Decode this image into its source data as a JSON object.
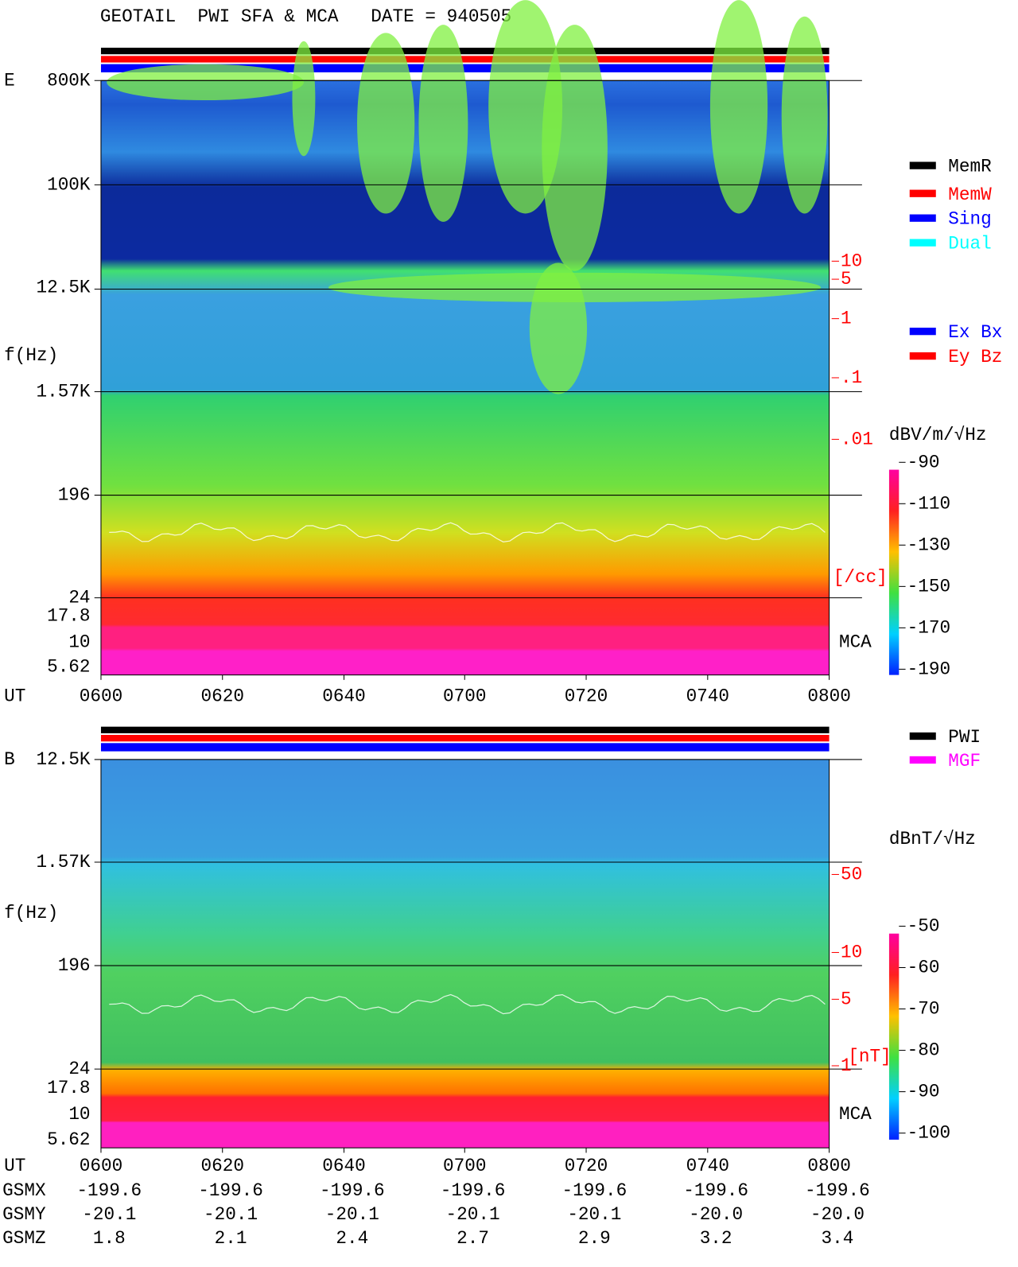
{
  "title": "GEOTAIL  PWI SFA & MCA   DATE = 940505",
  "panels": [
    {
      "label": "E",
      "ylabel": "f(Hz)",
      "yticks": [
        "800K",
        "100K",
        "12.5K",
        "1.57K",
        "196",
        "24",
        "17.8",
        "10",
        "5.62"
      ],
      "xaxis_label": "UT",
      "xticks": [
        "0600",
        "0620",
        "0640",
        "0700",
        "0720",
        "0740",
        "0800"
      ],
      "scale_ticks": [
        "10",
        "5",
        "1",
        ".1",
        ".01"
      ],
      "scale_unit": "[/cc]",
      "mca": "MCA",
      "legend": [
        {
          "name": "MemR",
          "color": "#000000"
        },
        {
          "name": "MemW",
          "color": "#ff0000"
        },
        {
          "name": "Sing",
          "color": "#0000ff"
        },
        {
          "name": "Dual",
          "color": "#00ffff"
        }
      ],
      "legend2": [
        {
          "name": "Ex Bx",
          "color": "#0000ff"
        },
        {
          "name": "Ey Bz",
          "color": "#ff0000"
        }
      ],
      "colorbar_unit": "dBV/m/√Hz",
      "colorbar_ticks": [
        -90,
        -110,
        -130,
        -150,
        -170,
        -190
      ]
    },
    {
      "label": "B",
      "ylabel": "f(Hz)",
      "yticks": [
        "12.5K",
        "1.57K",
        "196",
        "24",
        "17.8",
        "10",
        "5.62"
      ],
      "xaxis_label": "UT",
      "xticks": [
        "0600",
        "0620",
        "0640",
        "0700",
        "0720",
        "0740",
        "0800"
      ],
      "scale_ticks": [
        "50",
        "10",
        "5",
        "1"
      ],
      "scale_unit": "[nT]",
      "mca": "MCA",
      "legend": [
        {
          "name": "PWI",
          "color": "#000000"
        },
        {
          "name": "MGF",
          "color": "#ff00ff"
        }
      ],
      "colorbar_unit": "dBnT/√Hz",
      "colorbar_ticks": [
        -50,
        -60,
        -70,
        -80,
        -90,
        -100
      ]
    }
  ],
  "orbit": [
    {
      "name": "GSMX",
      "values": [
        -199.6,
        -199.6,
        -199.6,
        -199.6,
        -199.6,
        -199.6,
        -199.6
      ]
    },
    {
      "name": "GSMY",
      "values": [
        -20.1,
        -20.1,
        -20.1,
        -20.1,
        -20.1,
        {
          "value": -20,
          "label": "-20.0"
        },
        {
          "value": -20,
          "label": "-20.0"
        }
      ]
    },
    {
      "name": "GSMZ",
      "values": [
        1.8,
        2.1,
        2.4,
        2.7,
        2.9,
        3.2,
        3.4
      ]
    }
  ]
}
